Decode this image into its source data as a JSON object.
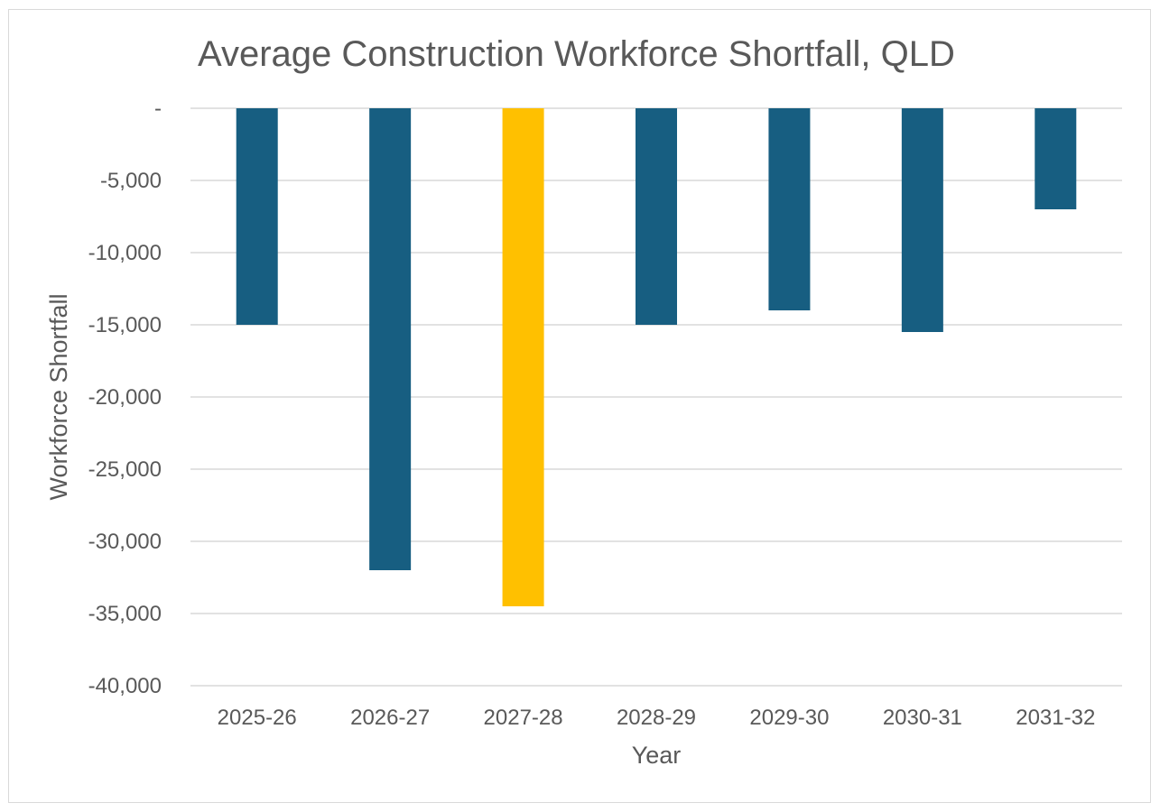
{
  "chart_data": {
    "type": "bar",
    "title": "Average Construction Workforce Shortfall, QLD",
    "xlabel": "Year",
    "ylabel": "Workforce Shortfall",
    "categories": [
      "2025-26",
      "2026-27",
      "2027-28",
      "2028-29",
      "2029-30",
      "2030-31",
      "2031-32"
    ],
    "values": [
      -15000,
      -32000,
      -34500,
      -15000,
      -14000,
      -15500,
      -7000
    ],
    "ylim": [
      -40000,
      0
    ],
    "yticks": [
      0,
      -5000,
      -10000,
      -15000,
      -20000,
      -25000,
      -30000,
      -35000,
      -40000
    ],
    "ytick_labels": [
      "-",
      "-5,000",
      "-10,000",
      "-15,000",
      "-20,000",
      "-25,000",
      "-30,000",
      "-35,000",
      "-40,000"
    ],
    "grid": true,
    "legend": "none",
    "bar_color": "#175E81",
    "highlight_color": "#FFC000",
    "highlight_category": "2027-28"
  }
}
